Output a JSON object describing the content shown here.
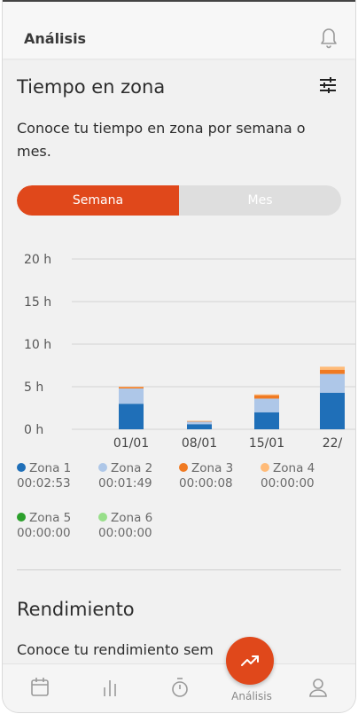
{
  "header": {
    "title": "Análisis",
    "bell_icon": "bell-icon"
  },
  "section1": {
    "title": "Tiempo en zona",
    "description": "Conoce tu tiempo en zona por semana o mes.",
    "filter_icon": "sliders-icon",
    "toggle": {
      "options": [
        "Semana",
        "Mes"
      ],
      "selected": "Semana"
    }
  },
  "chart_data": {
    "type": "bar",
    "stacked": true,
    "categories": [
      "01/01",
      "08/01",
      "15/01",
      "22/"
    ],
    "y_ticks": [
      "20 h",
      "15 h",
      "10 h",
      "5 h",
      "0 h"
    ],
    "ylim": [
      0,
      20
    ],
    "series": [
      {
        "name": "Zona 1",
        "color": "#1f6fb8",
        "values": [
          3.0,
          0.6,
          2.0,
          4.3
        ]
      },
      {
        "name": "Zona 2",
        "color": "#aec7e8",
        "values": [
          1.8,
          0.3,
          1.6,
          2.2
        ]
      },
      {
        "name": "Zona 3",
        "color": "#f07a22",
        "values": [
          0.15,
          0.05,
          0.4,
          0.5
        ]
      },
      {
        "name": "Zona 4",
        "color": "#ffbb78",
        "values": [
          0.05,
          0.05,
          0.1,
          0.35
        ]
      },
      {
        "name": "Zona 5",
        "color": "#2ca02c",
        "values": [
          0,
          0,
          0,
          0
        ]
      },
      {
        "name": "Zona 6",
        "color": "#98df8a",
        "values": [
          0,
          0,
          0,
          0
        ]
      }
    ],
    "grid": true
  },
  "legend": [
    {
      "name": "Zona 1",
      "time": "00:02:53",
      "color": "#1f6fb8"
    },
    {
      "name": "Zona 2",
      "time": "00:01:49",
      "color": "#aec7e8"
    },
    {
      "name": "Zona 3",
      "time": "00:00:08",
      "color": "#f07a22"
    },
    {
      "name": "Zona 4",
      "time": "00:00:00",
      "color": "#ffbb78"
    },
    {
      "name": "Zona 5",
      "time": "00:00:00",
      "color": "#2ca02c"
    },
    {
      "name": "Zona 6",
      "time": "00:00:00",
      "color": "#98df8a"
    }
  ],
  "section2": {
    "title": "Rendimiento",
    "description": "Conoce tu rendimiento sem"
  },
  "tabbar": {
    "items": [
      {
        "icon": "calendar-icon"
      },
      {
        "icon": "bars-icon"
      },
      {
        "icon": "stopwatch-icon"
      },
      {
        "icon": "trending-up-icon",
        "label": "Análisis",
        "active": true
      },
      {
        "icon": "user-icon"
      }
    ]
  },
  "colors": {
    "accent": "#e0481b",
    "background": "#f1f1f1"
  }
}
